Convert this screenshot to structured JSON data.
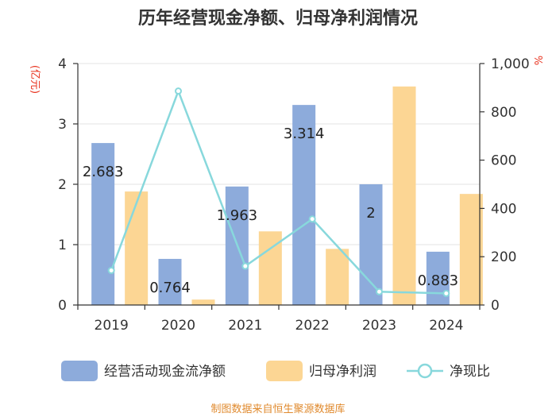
{
  "chart_data": {
    "type": "bar",
    "title": "历年经营现金净额、归母净利润情况",
    "categories": [
      "2019",
      "2020",
      "2021",
      "2022",
      "2023",
      "2024"
    ],
    "series": [
      {
        "name": "经营活动现金流净额",
        "type": "bar",
        "axis": "left",
        "color": "#8dabdb",
        "values": [
          2.683,
          0.764,
          1.963,
          3.314,
          2.0,
          0.883
        ]
      },
      {
        "name": "归母净利润",
        "type": "bar",
        "axis": "left",
        "color": "#fcd694",
        "values": [
          1.88,
          0.09,
          1.22,
          0.93,
          3.62,
          1.84
        ]
      },
      {
        "name": "净现比",
        "type": "line",
        "axis": "right",
        "color": "#88d8dc",
        "values": [
          143,
          886,
          161,
          356,
          55,
          48
        ]
      }
    ],
    "data_labels": [
      "2.683",
      "0.764",
      "1.963",
      "3.314",
      "2",
      "0.883"
    ],
    "y_left": {
      "label": "(亿元)",
      "ylim": [
        0,
        4
      ],
      "ticks": [
        "0",
        "1",
        "2",
        "3",
        "4"
      ],
      "tick_values": [
        0,
        1,
        2,
        3,
        4
      ]
    },
    "y_right": {
      "label": "%",
      "ylim": [
        0,
        1000
      ],
      "ticks": [
        "0",
        "200",
        "400",
        "600",
        "800",
        "1,000"
      ],
      "tick_values": [
        0,
        200,
        400,
        600,
        800,
        1000
      ]
    },
    "grid": true,
    "legend": "bottom",
    "source": "制图数据来自恒生聚源数据库"
  }
}
